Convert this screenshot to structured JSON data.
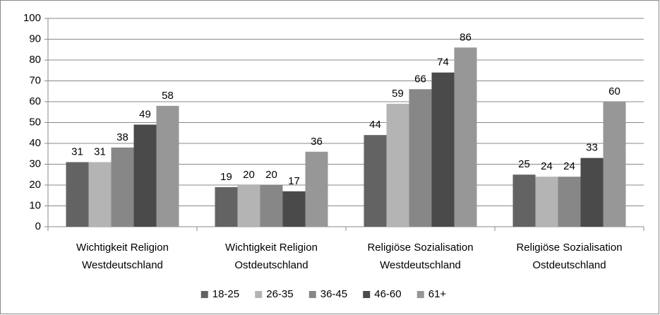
{
  "chart_data": {
    "type": "bar",
    "categories": [
      [
        "Wichtigkeit Religion",
        "Westdeutschland"
      ],
      [
        "Wichtigkeit Religion",
        "Ostdeutschland"
      ],
      [
        "Religiöse Sozialisation",
        "Westdeutschland"
      ],
      [
        "Religiöse Sozialisation",
        "Ostdeutschland"
      ]
    ],
    "series": [
      {
        "name": "18-25",
        "color": "#636363",
        "values": [
          31,
          19,
          44,
          25
        ]
      },
      {
        "name": "26-35",
        "color": "#b4b4b4",
        "values": [
          31,
          20,
          59,
          24
        ]
      },
      {
        "name": "36-45",
        "color": "#878787",
        "values": [
          38,
          20,
          66,
          24
        ]
      },
      {
        "name": "46-60",
        "color": "#4a4a4a",
        "values": [
          49,
          17,
          74,
          33
        ]
      },
      {
        "name": "61+",
        "color": "#979797",
        "values": [
          58,
          36,
          86,
          60
        ]
      }
    ],
    "ylim": [
      0,
      100
    ],
    "yticks": [
      0,
      10,
      20,
      30,
      40,
      50,
      60,
      70,
      80,
      90,
      100
    ],
    "grid": true,
    "legend": "bottom"
  }
}
